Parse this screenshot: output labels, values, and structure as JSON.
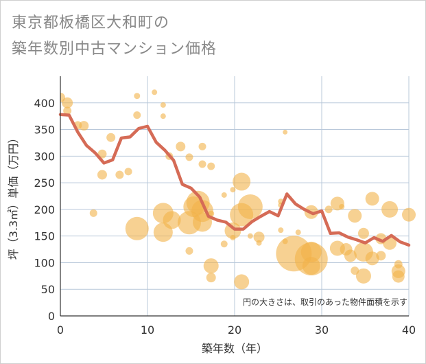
{
  "title_line1": "東京都板橋区大和町の",
  "title_line2": "築年数別中古マンション価格",
  "chart_data": {
    "type": "scatter",
    "xlabel": "築年数（年）",
    "ylabel": "坪（3.3㎡）単価（万円）",
    "xlim": [
      0,
      40
    ],
    "ylim": [
      0,
      450
    ],
    "xticks": [
      0,
      10,
      20,
      30,
      40
    ],
    "yticks": [
      0,
      50,
      100,
      150,
      200,
      250,
      300,
      350,
      400
    ],
    "grid": true,
    "note": "円の大きさは、取引のあった物件面積を示す",
    "colors": {
      "bubble": "#f2b24a",
      "line": "#d56b56",
      "grid": "#b8c8da"
    },
    "average_line": {
      "x": [
        0,
        1,
        2,
        3,
        4,
        5,
        6,
        7,
        8,
        9,
        10,
        11,
        12,
        13,
        14,
        15,
        16,
        17,
        18,
        19,
        20,
        21,
        22,
        23,
        24,
        25,
        26,
        27,
        28,
        29,
        30,
        31,
        32,
        33,
        34,
        35,
        36,
        37,
        38,
        39,
        40
      ],
      "y": [
        378,
        377,
        345,
        320,
        306,
        287,
        293,
        334,
        336,
        352,
        356,
        326,
        311,
        292,
        247,
        240,
        223,
        187,
        180,
        176,
        163,
        163,
        177,
        187,
        196,
        188,
        229,
        210,
        200,
        192,
        197,
        155,
        156,
        148,
        143,
        137,
        147,
        140,
        151,
        139,
        133
      ]
    },
    "bubbles": [
      {
        "x": 0,
        "y": 410,
        "s": 14
      },
      {
        "x": 0.8,
        "y": 400,
        "s": 16
      },
      {
        "x": 0.8,
        "y": 385,
        "s": 12
      },
      {
        "x": 2,
        "y": 358,
        "s": 12
      },
      {
        "x": 2.7,
        "y": 357,
        "s": 14
      },
      {
        "x": 3.8,
        "y": 193,
        "s": 11
      },
      {
        "x": 4.8,
        "y": 304,
        "s": 13
      },
      {
        "x": 4.8,
        "y": 265,
        "s": 14
      },
      {
        "x": 5.8,
        "y": 335,
        "s": 13
      },
      {
        "x": 6.8,
        "y": 265,
        "s": 12
      },
      {
        "x": 7.8,
        "y": 271,
        "s": 11
      },
      {
        "x": 8.8,
        "y": 413,
        "s": 9
      },
      {
        "x": 8.8,
        "y": 377,
        "s": 11
      },
      {
        "x": 8.8,
        "y": 164,
        "s": 34
      },
      {
        "x": 10.8,
        "y": 420,
        "s": 8
      },
      {
        "x": 11.8,
        "y": 396,
        "s": 8
      },
      {
        "x": 11.8,
        "y": 375,
        "s": 8
      },
      {
        "x": 11.8,
        "y": 193,
        "s": 30
      },
      {
        "x": 11.8,
        "y": 157,
        "s": 28
      },
      {
        "x": 12.5,
        "y": 300,
        "s": 11
      },
      {
        "x": 12.8,
        "y": 180,
        "s": 26
      },
      {
        "x": 13.8,
        "y": 318,
        "s": 14
      },
      {
        "x": 14.8,
        "y": 298,
        "s": 11
      },
      {
        "x": 14.8,
        "y": 175,
        "s": 34
      },
      {
        "x": 14.8,
        "y": 122,
        "s": 11
      },
      {
        "x": 15.3,
        "y": 205,
        "s": 30
      },
      {
        "x": 15.8,
        "y": 213,
        "s": 34
      },
      {
        "x": 16.3,
        "y": 318,
        "s": 11
      },
      {
        "x": 16.3,
        "y": 285,
        "s": 11
      },
      {
        "x": 16.3,
        "y": 197,
        "s": 32
      },
      {
        "x": 16.3,
        "y": 176,
        "s": 28
      },
      {
        "x": 17.3,
        "y": 281,
        "s": 11
      },
      {
        "x": 17.3,
        "y": 192,
        "s": 9
      },
      {
        "x": 17.3,
        "y": 94,
        "s": 22
      },
      {
        "x": 17.3,
        "y": 72,
        "s": 14
      },
      {
        "x": 18.8,
        "y": 227,
        "s": 8
      },
      {
        "x": 18.8,
        "y": 135,
        "s": 10
      },
      {
        "x": 19.8,
        "y": 237,
        "s": 8
      },
      {
        "x": 19.8,
        "y": 160,
        "s": 24
      },
      {
        "x": 19.8,
        "y": 147,
        "s": 8
      },
      {
        "x": 20.8,
        "y": 252,
        "s": 26
      },
      {
        "x": 20.8,
        "y": 190,
        "s": 34
      },
      {
        "x": 20.8,
        "y": 64,
        "s": 22
      },
      {
        "x": 21.8,
        "y": 205,
        "s": 36
      },
      {
        "x": 21.8,
        "y": 150,
        "s": 8
      },
      {
        "x": 22.8,
        "y": 148,
        "s": 16
      },
      {
        "x": 22.8,
        "y": 137,
        "s": 8
      },
      {
        "x": 25.3,
        "y": 215,
        "s": 8
      },
      {
        "x": 25.3,
        "y": 208,
        "s": 8
      },
      {
        "x": 25.3,
        "y": 161,
        "s": 8
      },
      {
        "x": 25.8,
        "y": 345,
        "s": 7
      },
      {
        "x": 25.8,
        "y": 140,
        "s": 8
      },
      {
        "x": 26.8,
        "y": 117,
        "s": 52
      },
      {
        "x": 27.3,
        "y": 157,
        "s": 8
      },
      {
        "x": 28.8,
        "y": 195,
        "s": 20
      },
      {
        "x": 28.8,
        "y": 120,
        "s": 30
      },
      {
        "x": 28.8,
        "y": 107,
        "s": 48
      },
      {
        "x": 28.8,
        "y": 94,
        "s": 26
      },
      {
        "x": 30.8,
        "y": 200,
        "s": 11
      },
      {
        "x": 31.8,
        "y": 211,
        "s": 20
      },
      {
        "x": 31.8,
        "y": 127,
        "s": 22
      },
      {
        "x": 32.3,
        "y": 205,
        "s": 8
      },
      {
        "x": 32.8,
        "y": 125,
        "s": 18
      },
      {
        "x": 33.3,
        "y": 113,
        "s": 18
      },
      {
        "x": 33.8,
        "y": 188,
        "s": 20
      },
      {
        "x": 33.8,
        "y": 85,
        "s": 12
      },
      {
        "x": 34.8,
        "y": 155,
        "s": 16
      },
      {
        "x": 34.8,
        "y": 120,
        "s": 28
      },
      {
        "x": 34.8,
        "y": 75,
        "s": 22
      },
      {
        "x": 35.8,
        "y": 220,
        "s": 20
      },
      {
        "x": 35.8,
        "y": 108,
        "s": 20
      },
      {
        "x": 36.8,
        "y": 145,
        "s": 16
      },
      {
        "x": 36.8,
        "y": 113,
        "s": 14
      },
      {
        "x": 37.8,
        "y": 200,
        "s": 24
      },
      {
        "x": 37.8,
        "y": 137,
        "s": 20
      },
      {
        "x": 38.8,
        "y": 97,
        "s": 12
      },
      {
        "x": 38.8,
        "y": 84,
        "s": 20
      },
      {
        "x": 38.8,
        "y": 74,
        "s": 18
      },
      {
        "x": 40,
        "y": 190,
        "s": 20
      }
    ]
  }
}
